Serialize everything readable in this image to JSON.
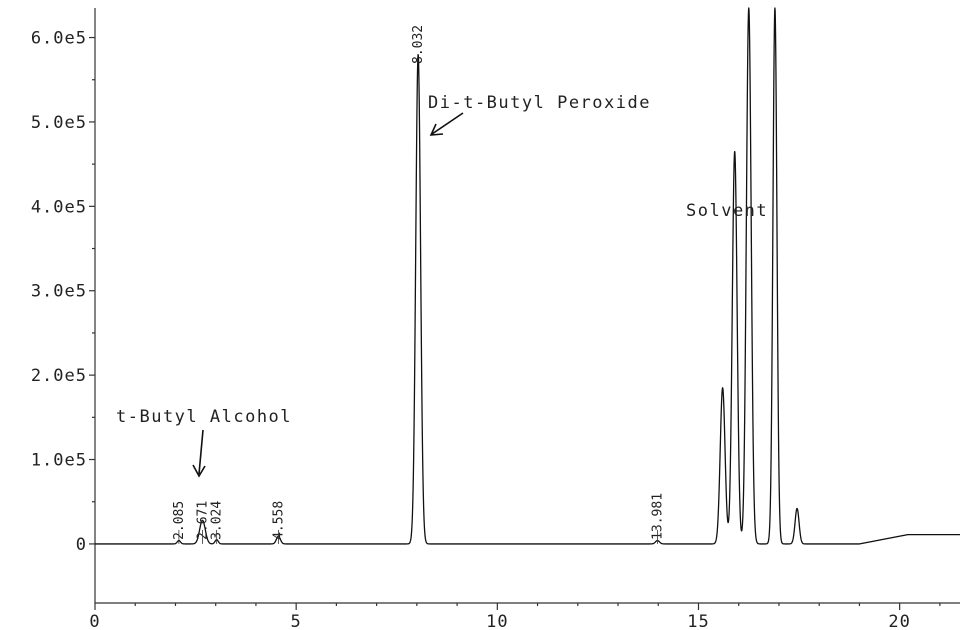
{
  "chart_data": {
    "type": "line",
    "xlabel": "",
    "ylabel": "",
    "xlim": [
      0,
      21.5
    ],
    "ylim": [
      -70000,
      635000
    ],
    "x_ticks": [
      0,
      5,
      10,
      15,
      20
    ],
    "x_tick_labels": [
      "0",
      "5",
      "10",
      "15",
      "20"
    ],
    "y_ticks": [
      0,
      100000,
      200000,
      300000,
      400000,
      500000,
      600000
    ],
    "y_tick_labels": [
      "0",
      "1.0e5",
      "2.0e5",
      "3.0e5",
      "4.0e5",
      "5.0e5",
      "6.0e5"
    ],
    "grid": false,
    "series": [
      {
        "peaks": [
          {
            "rt": 2.085,
            "height": 4000,
            "width": 0.04,
            "label": "2.085"
          },
          {
            "rt": 2.671,
            "height": 28000,
            "width": 0.07,
            "label": "2.671"
          },
          {
            "rt": 3.024,
            "height": 5000,
            "width": 0.04,
            "label": "3.024"
          },
          {
            "rt": 4.558,
            "height": 9000,
            "width": 0.05,
            "label": "4.558"
          },
          {
            "rt": 8.032,
            "height": 580000,
            "width": 0.06,
            "label": "8.032"
          },
          {
            "rt": 13.981,
            "height": 4000,
            "width": 0.05,
            "label": "13.981"
          },
          {
            "rt": 15.6,
            "height": 185000,
            "width": 0.06,
            "label": ""
          },
          {
            "rt": 15.9,
            "height": 465000,
            "width": 0.06,
            "label": ""
          },
          {
            "rt": 16.25,
            "height": 635000,
            "width": 0.06,
            "label": ""
          },
          {
            "rt": 16.9,
            "height": 635000,
            "width": 0.05,
            "label": ""
          },
          {
            "rt": 17.45,
            "height": 42000,
            "width": 0.05,
            "label": ""
          }
        ]
      }
    ],
    "annotations": [
      {
        "text": "t-Butyl Alcohol",
        "target_rt": 2.671
      },
      {
        "text": "Di-t-Butyl Peroxide",
        "target_rt": 8.032
      },
      {
        "text": "Solvent",
        "target_rt": 16.25
      }
    ]
  }
}
